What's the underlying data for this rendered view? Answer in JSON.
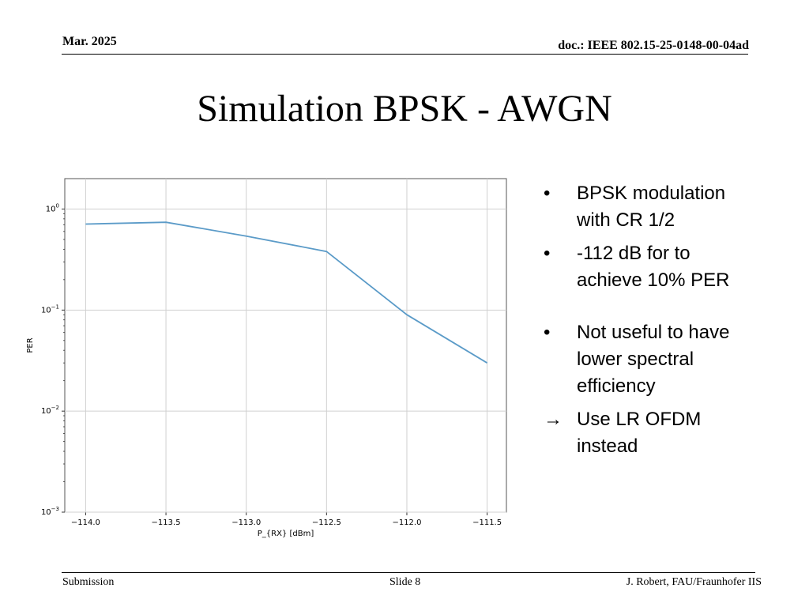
{
  "header": {
    "date": "Mar. 2025",
    "doc": "doc.: IEEE 802.15-25-0148-00-04ad"
  },
  "title": "Simulation BPSK - AWGN",
  "bullets": [
    {
      "marker": "•",
      "text": "BPSK modulation with CR 1/2"
    },
    {
      "marker": "•",
      "text": "-112 dB for to achieve 10% PER"
    },
    {
      "marker": "•",
      "text": "Not useful to have lower spectral efficiency"
    },
    {
      "marker": "→",
      "text": "Use LR OFDM instead"
    }
  ],
  "footer": {
    "left": "Submission",
    "center": "Slide 8",
    "right": "J. Robert, FAU/Fraunhofer IIS"
  },
  "chart_data": {
    "type": "line",
    "xlabel": "P_{RX} [dBm]",
    "ylabel": "PER",
    "y_scale": "log",
    "grid": true,
    "xlim": [
      -114.13,
      -111.38
    ],
    "ylim": [
      0.001,
      2.0
    ],
    "x_ticks": [
      -114.0,
      -113.5,
      -113.0,
      -112.5,
      -112.0,
      -111.5
    ],
    "x_tick_labels": [
      "−114.0",
      "−113.5",
      "−113.0",
      "−112.5",
      "−112.0",
      "−111.5"
    ],
    "y_ticks": [
      1,
      0.1,
      0.01,
      0.001
    ],
    "y_tick_labels": [
      {
        "base": "10",
        "exp": "0"
      },
      {
        "base": "10",
        "exp": "−1"
      },
      {
        "base": "10",
        "exp": "−2"
      },
      {
        "base": "10",
        "exp": "−3"
      }
    ],
    "line_color": "#5b9bc8",
    "series": [
      {
        "x": [
          -114.0,
          -113.5,
          -113.0,
          -112.5,
          -112.0,
          -111.5
        ],
        "y": [
          0.71,
          0.74,
          0.54,
          0.38,
          0.09,
          0.03
        ]
      }
    ]
  }
}
